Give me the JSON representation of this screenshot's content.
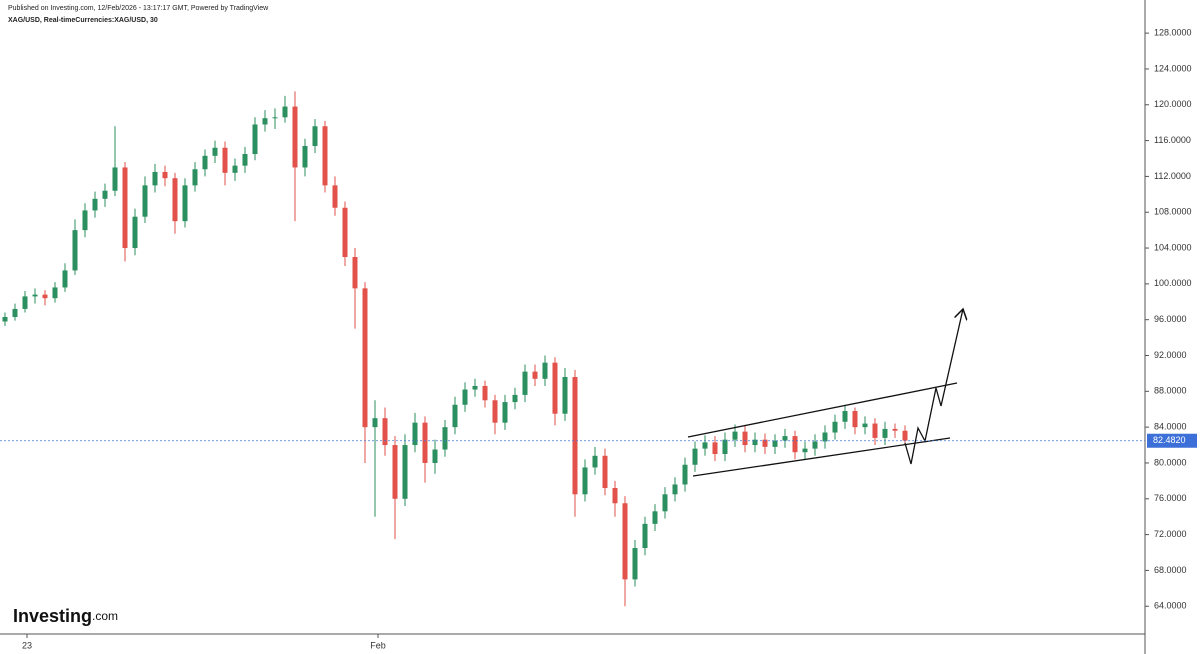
{
  "header": {
    "published": "Published on Investing.com, 12/Feb/2026 - 13:17:17 GMT, Powered by TradingView",
    "symbol": "XAG/USD, Real-timeCurrencies:XAG/USD, 30"
  },
  "logo": {
    "name": "Investing",
    "suffix": ".com"
  },
  "chart_data": {
    "type": "candlestick",
    "up_color": "#2b8f5f",
    "down_color": "#e2514a",
    "ylim": [
      60.9,
      131.7
    ],
    "xlim": [
      -0.5,
      114
    ],
    "yticks": [
      {
        "value": 64,
        "label": "64.0000"
      },
      {
        "value": 68,
        "label": "68.0000"
      },
      {
        "value": 72,
        "label": "72.0000"
      },
      {
        "value": 76,
        "label": "76.0000"
      },
      {
        "value": 80,
        "label": "80.0000"
      },
      {
        "value": 84,
        "label": "84.0000"
      },
      {
        "value": 88,
        "label": "88.0000"
      },
      {
        "value": 92,
        "label": "92.0000"
      },
      {
        "value": 96,
        "label": "96.0000"
      },
      {
        "value": 100,
        "label": "100.0000"
      },
      {
        "value": 104,
        "label": "104.0000"
      },
      {
        "value": 108,
        "label": "108.0000"
      },
      {
        "value": 112,
        "label": "112.0000"
      },
      {
        "value": 116,
        "label": "116.0000"
      },
      {
        "value": 120,
        "label": "120.0000"
      },
      {
        "value": 124,
        "label": "124.0000"
      },
      {
        "value": 128,
        "label": "128.0000"
      }
    ],
    "xticks": [
      {
        "value": 2.2,
        "label": "23"
      },
      {
        "value": 37.3,
        "label": "Feb"
      }
    ],
    "last_price": {
      "value": 82.482,
      "label": "82.4820"
    },
    "ohlc": [
      [
        95.8,
        96.8,
        95.3,
        96.3
      ],
      [
        96.3,
        97.8,
        95.9,
        97.2
      ],
      [
        97.2,
        99.2,
        96.8,
        98.6
      ],
      [
        98.6,
        99.5,
        97.8,
        98.8
      ],
      [
        98.8,
        99.3,
        97.6,
        98.4
      ],
      [
        98.4,
        100.2,
        97.9,
        99.6
      ],
      [
        99.6,
        102.3,
        99.1,
        101.5
      ],
      [
        101.5,
        107.2,
        101.0,
        106.0
      ],
      [
        106.0,
        109.0,
        105.2,
        108.2
      ],
      [
        108.2,
        110.3,
        107.4,
        109.5
      ],
      [
        109.5,
        111.2,
        108.6,
        110.4
      ],
      [
        110.4,
        117.6,
        109.8,
        113.0
      ],
      [
        113.0,
        113.6,
        102.5,
        104.0
      ],
      [
        104.0,
        108.4,
        103.2,
        107.5
      ],
      [
        107.5,
        112.0,
        106.8,
        111.0
      ],
      [
        111.0,
        113.4,
        110.2,
        112.5
      ],
      [
        112.5,
        113.2,
        110.9,
        111.8
      ],
      [
        111.8,
        112.4,
        105.6,
        107.0
      ],
      [
        107.0,
        111.8,
        106.3,
        111.0
      ],
      [
        111.0,
        113.6,
        110.3,
        112.8
      ],
      [
        112.8,
        115.0,
        112.0,
        114.3
      ],
      [
        114.3,
        116.0,
        113.5,
        115.2
      ],
      [
        115.2,
        115.9,
        111.0,
        112.4
      ],
      [
        112.4,
        114.0,
        111.5,
        113.2
      ],
      [
        113.2,
        115.3,
        112.4,
        114.5
      ],
      [
        114.5,
        118.6,
        113.8,
        117.8
      ],
      [
        117.8,
        119.4,
        117.0,
        118.5
      ],
      [
        118.5,
        119.6,
        117.3,
        118.6
      ],
      [
        118.6,
        121.0,
        118.0,
        119.8
      ],
      [
        119.8,
        121.5,
        107.0,
        113.0
      ],
      [
        113.0,
        116.2,
        112.0,
        115.4
      ],
      [
        115.4,
        118.4,
        114.6,
        117.6
      ],
      [
        117.6,
        118.2,
        110.2,
        111.0
      ],
      [
        111.0,
        112.0,
        107.6,
        108.5
      ],
      [
        108.5,
        109.2,
        102.0,
        103.0
      ],
      [
        103.0,
        104.0,
        95.0,
        99.5
      ],
      [
        99.5,
        100.2,
        80.0,
        84.0
      ],
      [
        84.0,
        87.0,
        74.0,
        85.0
      ],
      [
        85.0,
        86.2,
        80.8,
        82.0
      ],
      [
        82.0,
        83.0,
        71.5,
        76.0
      ],
      [
        76.0,
        83.2,
        75.2,
        82.0
      ],
      [
        82.0,
        85.6,
        81.2,
        84.5
      ],
      [
        84.5,
        85.2,
        77.8,
        80.0
      ],
      [
        80.0,
        82.6,
        78.8,
        81.5
      ],
      [
        81.5,
        84.8,
        80.7,
        84.0
      ],
      [
        84.0,
        87.4,
        83.2,
        86.5
      ],
      [
        86.5,
        89.0,
        85.7,
        88.2
      ],
      [
        88.2,
        89.4,
        87.4,
        88.6
      ],
      [
        88.6,
        89.2,
        86.2,
        87.0
      ],
      [
        87.0,
        87.6,
        83.2,
        84.5
      ],
      [
        84.5,
        87.6,
        83.7,
        86.8
      ],
      [
        86.8,
        88.4,
        86.0,
        87.6
      ],
      [
        87.6,
        91.0,
        86.8,
        90.2
      ],
      [
        90.2,
        91.0,
        88.6,
        89.4
      ],
      [
        89.4,
        92.0,
        88.6,
        91.2
      ],
      [
        91.2,
        91.8,
        84.2,
        85.5
      ],
      [
        85.5,
        90.6,
        84.7,
        89.6
      ],
      [
        89.6,
        90.4,
        74.0,
        76.5
      ],
      [
        76.5,
        80.4,
        75.7,
        79.5
      ],
      [
        79.5,
        81.8,
        78.7,
        80.8
      ],
      [
        80.8,
        81.6,
        76.4,
        77.2
      ],
      [
        77.2,
        78.0,
        74.0,
        75.5
      ],
      [
        75.5,
        76.3,
        64.0,
        67.0
      ],
      [
        67.0,
        71.4,
        66.2,
        70.5
      ],
      [
        70.5,
        74.0,
        69.7,
        73.2
      ],
      [
        73.2,
        75.4,
        72.4,
        74.6
      ],
      [
        74.6,
        77.3,
        73.8,
        76.5
      ],
      [
        76.5,
        78.4,
        75.7,
        77.6
      ],
      [
        77.6,
        80.6,
        76.8,
        79.8
      ],
      [
        79.8,
        82.4,
        79.0,
        81.6
      ],
      [
        81.6,
        83.1,
        80.8,
        82.3
      ],
      [
        82.3,
        83.0,
        80.2,
        81.0
      ],
      [
        81.0,
        83.4,
        80.2,
        82.6
      ],
      [
        82.6,
        84.3,
        81.8,
        83.5
      ],
      [
        83.5,
        84.2,
        81.2,
        82.0
      ],
      [
        82.0,
        83.4,
        81.2,
        82.6
      ],
      [
        82.6,
        83.3,
        81.0,
        81.8
      ],
      [
        81.8,
        83.2,
        81.0,
        82.5
      ],
      [
        82.5,
        83.8,
        81.7,
        83.0
      ],
      [
        83.0,
        83.6,
        80.4,
        81.2
      ],
      [
        81.2,
        82.4,
        80.4,
        81.6
      ],
      [
        81.6,
        83.2,
        80.8,
        82.4
      ],
      [
        82.4,
        84.2,
        81.6,
        83.4
      ],
      [
        83.4,
        85.4,
        82.6,
        84.6
      ],
      [
        84.6,
        86.4,
        83.8,
        85.8
      ],
      [
        85.8,
        86.2,
        83.2,
        84.0
      ],
      [
        84.0,
        85.2,
        83.2,
        84.4
      ],
      [
        84.4,
        85.0,
        82.0,
        82.8
      ],
      [
        82.8,
        84.6,
        82.0,
        83.8
      ],
      [
        83.8,
        84.4,
        82.8,
        83.6
      ],
      [
        83.6,
        84.2,
        82.2,
        82.5
      ]
    ]
  }
}
